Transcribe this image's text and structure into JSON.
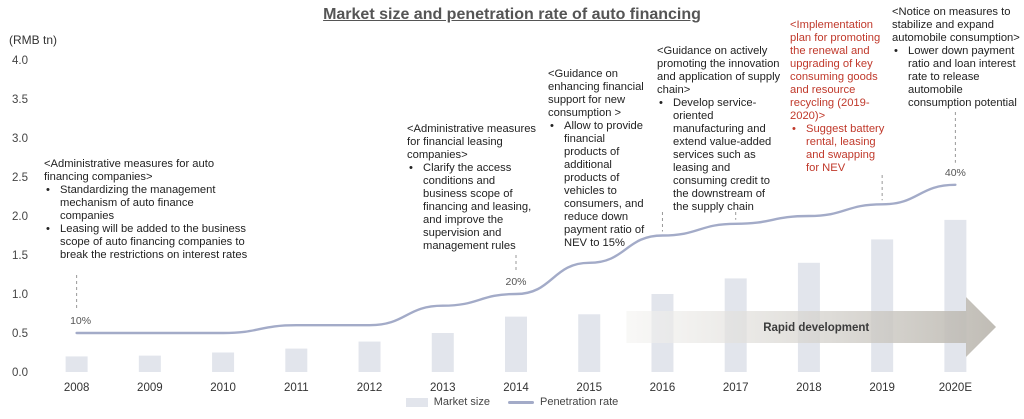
{
  "chart_data": {
    "type": "bar+line",
    "title": "Market size and penetration rate of auto financing",
    "unit_label": "(RMB tn)",
    "categories": [
      "2008",
      "2009",
      "2010",
      "2011",
      "2012",
      "2013",
      "2014",
      "2015",
      "2016",
      "2017",
      "2018",
      "2019",
      "2020E"
    ],
    "ylim": [
      0,
      4.0
    ],
    "yticks": [
      "4.0",
      "3.5",
      "3.0",
      "2.5",
      "2.0",
      "1.5",
      "1.0",
      "0.5",
      "0.0"
    ],
    "ytick_values": [
      4.0,
      3.5,
      3.0,
      2.5,
      2.0,
      1.5,
      1.0,
      0.5,
      0.0
    ],
    "series": [
      {
        "name": "Market size",
        "kind": "bar",
        "values": [
          0.2,
          0.21,
          0.25,
          0.3,
          0.39,
          0.5,
          0.71,
          0.74,
          1.0,
          1.2,
          1.4,
          1.7,
          1.95
        ],
        "color": "#e2e5ec"
      },
      {
        "name": "Penetration rate",
        "kind": "line",
        "values": [
          0.5,
          0.5,
          0.5,
          0.6,
          0.6,
          0.85,
          1.0,
          1.4,
          1.75,
          1.9,
          2.0,
          2.15,
          2.4
        ],
        "color": "#a3abc8"
      }
    ],
    "point_labels": [
      {
        "index": 0,
        "text": "10%"
      },
      {
        "index": 6,
        "text": "20%"
      },
      {
        "index": 12,
        "text": "40%"
      }
    ],
    "arrow_label": "Rapid development",
    "legend_position": "bottom"
  },
  "annotations": [
    {
      "head": "<Administrative measures for auto financing companies>",
      "bullets": [
        "Standardizing the management mechanism of auto finance companies",
        "Leasing will be added to the business scope of auto financing companies to break the restrictions on interest rates"
      ]
    },
    {
      "head": "<Administrative measures for financial leasing companies>",
      "bullets": [
        "Clarify the access conditions and business scope of financing and leasing, and improve the supervision and management rules"
      ]
    },
    {
      "head": "<Guidance on enhancing financial support for new consumption >",
      "bullets": [
        "Allow to provide financial products of additional products of vehicles to consumers, and reduce down payment ratio of NEV to 15%"
      ]
    },
    {
      "head": "<Guidance on actively promoting the innovation and application of supply chain>",
      "bullets": [
        "Develop service-oriented manufacturing and extend value-added services such as leasing and consuming credit to the downstream of the supply chain"
      ]
    },
    {
      "head": "<Implementation plan for promoting the renewal and upgrading of key consuming goods and resource recycling (2019-2020)>",
      "bullets": [
        "Suggest battery rental, leasing and swapping for NEV"
      ]
    },
    {
      "head": "<Notice on measures to stabilize and expand automobile consumption>",
      "bullets": [
        "Lower down payment ratio and loan interest rate to release automobile consumption potential"
      ]
    }
  ]
}
